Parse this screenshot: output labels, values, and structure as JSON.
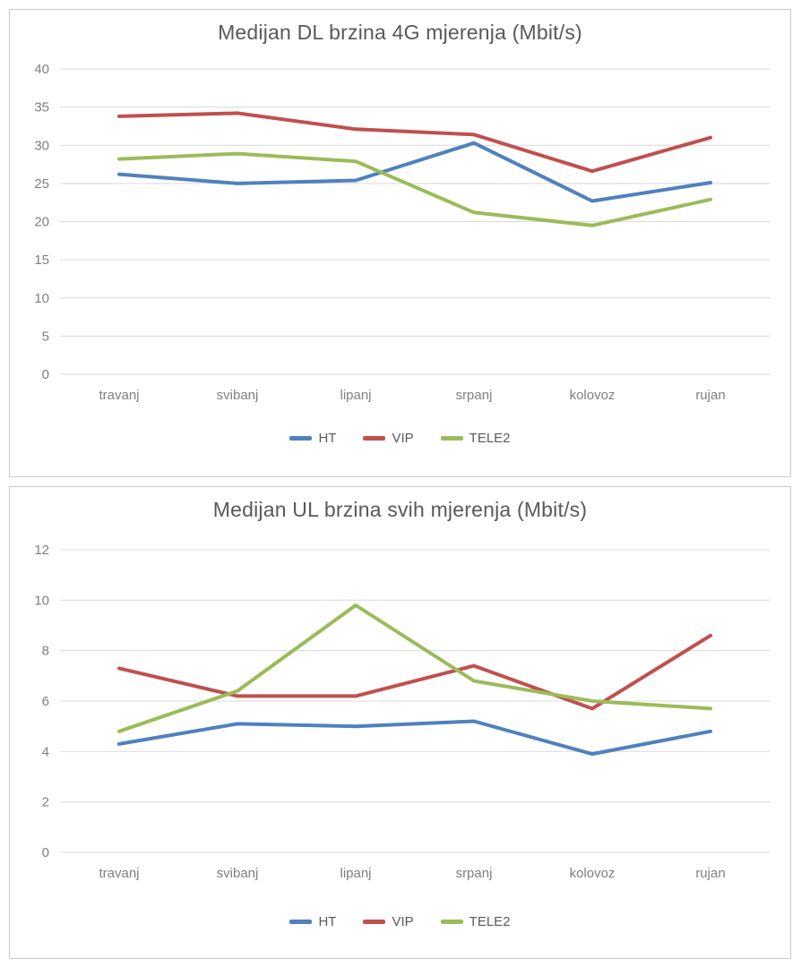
{
  "style": {
    "background": "#ffffff",
    "panel_border_color": "#c9c9c9",
    "gridline_color": "#d9d9d9",
    "title_color": "#595959",
    "axis_label_color": "#7f7f7f",
    "legend_text_color": "#595959"
  },
  "chart_data": [
    {
      "type": "line",
      "title": "Medijan DL brzina 4G mjerenja (Mbit/s)",
      "categories": [
        "travanj",
        "svibanj",
        "lipanj",
        "srpanj",
        "kolovoz",
        "rujan"
      ],
      "series": [
        {
          "name": "HT",
          "color": "#4F81BD",
          "values": [
            26.2,
            25.0,
            25.4,
            30.3,
            22.7,
            25.1
          ]
        },
        {
          "name": "VIP",
          "color": "#C0504D",
          "values": [
            33.8,
            34.2,
            32.1,
            31.4,
            26.6,
            31.0
          ]
        },
        {
          "name": "TELE2",
          "color": "#9BBB59",
          "values": [
            28.2,
            28.9,
            27.9,
            21.2,
            19.5,
            22.9
          ]
        }
      ],
      "xlabel": "",
      "ylabel": "",
      "ylim": [
        0,
        40
      ],
      "ytick_step": 5,
      "grid": true,
      "legend_position": "bottom"
    },
    {
      "type": "line",
      "title": "Medijan UL brzina svih mjerenja (Mbit/s)",
      "categories": [
        "travanj",
        "svibanj",
        "lipanj",
        "srpanj",
        "kolovoz",
        "rujan"
      ],
      "series": [
        {
          "name": "HT",
          "color": "#4F81BD",
          "values": [
            4.3,
            5.1,
            5.0,
            5.2,
            3.9,
            4.8
          ]
        },
        {
          "name": "VIP",
          "color": "#C0504D",
          "values": [
            7.3,
            6.2,
            6.2,
            7.4,
            5.7,
            8.6
          ]
        },
        {
          "name": "TELE2",
          "color": "#9BBB59",
          "values": [
            4.8,
            6.4,
            9.8,
            6.8,
            6.0,
            5.7
          ]
        }
      ],
      "xlabel": "",
      "ylabel": "",
      "ylim": [
        0,
        12
      ],
      "ytick_step": 2,
      "grid": true,
      "legend_position": "bottom"
    }
  ]
}
